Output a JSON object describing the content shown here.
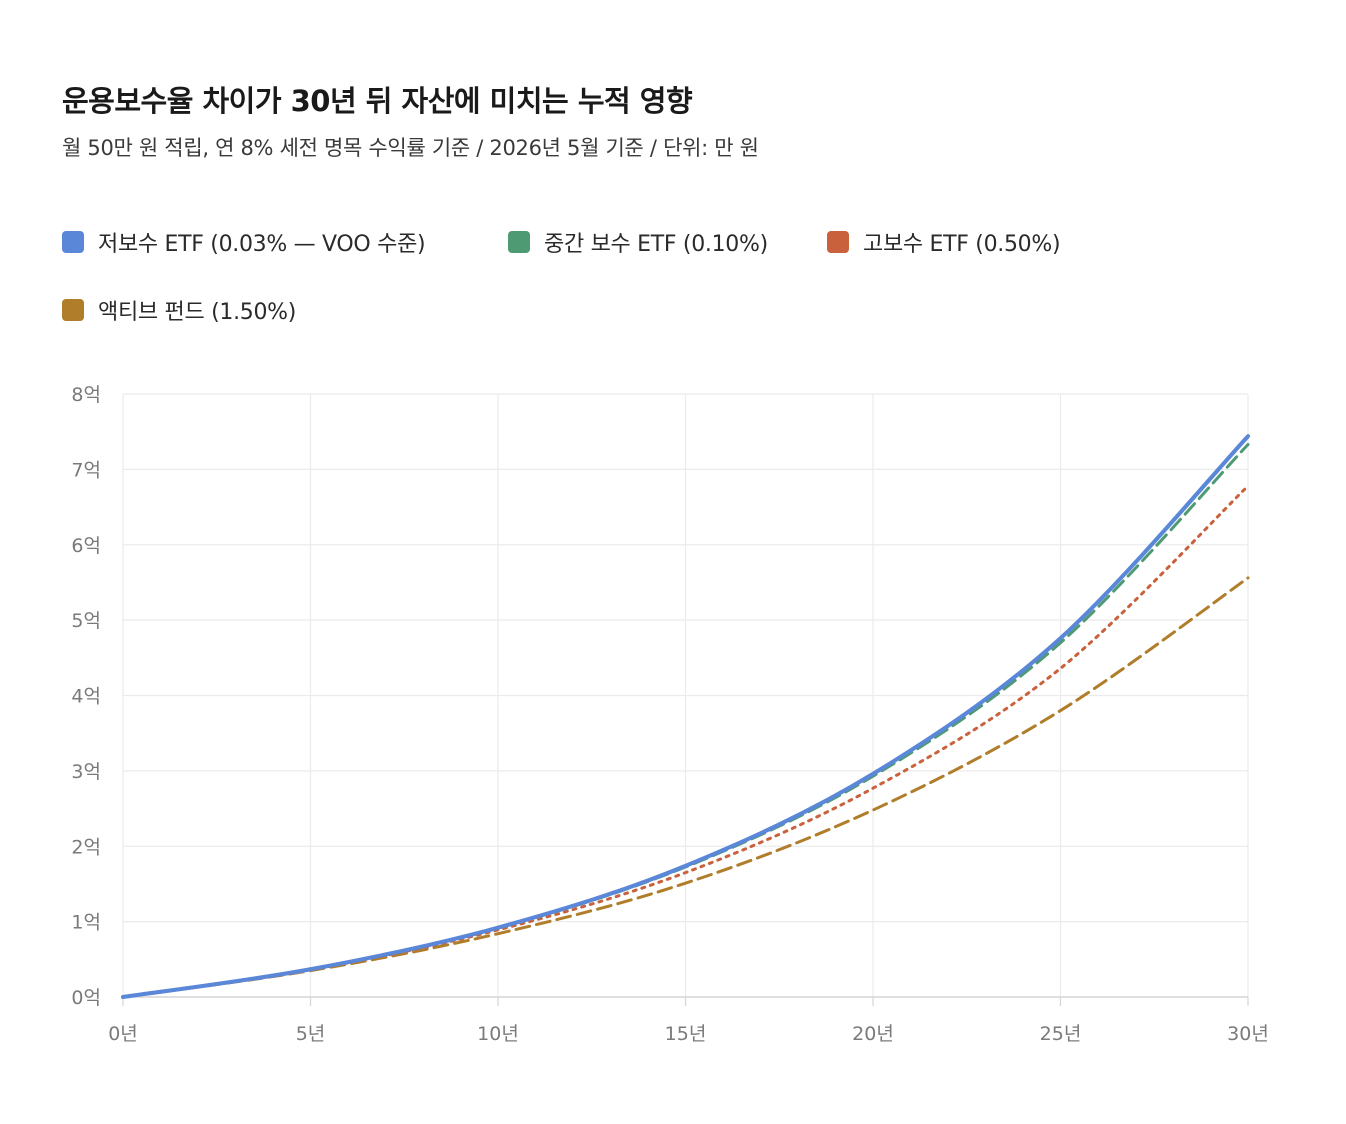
{
  "title": "운용보수율 차이가 30년 뒤 자산에 미치는 누적 영향",
  "subtitle": "월 50만 원 적립, 연 8% 세전 명목 수익률 기준 / 2026년 5월 기준 / 단위: 만 원",
  "legend": [
    {
      "label": "저보수 ETF (0.03% — VOO 수준)",
      "color": "#5b87d9"
    },
    {
      "label": "중간 보수 ETF (0.10%)",
      "color": "#4e9a72"
    },
    {
      "label": "고보수 ETF (0.50%)",
      "color": "#c8613c"
    },
    {
      "label": "액티브 펀드 (1.50%)",
      "color": "#b07d2a"
    }
  ],
  "chart_data": {
    "type": "line",
    "xlabel": "",
    "ylabel": "",
    "x_ticks": [
      "0년",
      "5년",
      "10년",
      "15년",
      "20년",
      "25년",
      "30년"
    ],
    "y_ticks": [
      "0억",
      "1억",
      "2억",
      "3억",
      "4억",
      "5억",
      "6억",
      "7억",
      "8억"
    ],
    "xlim": [
      0,
      30
    ],
    "ylim": [
      0,
      80000
    ],
    "grid": true,
    "legend_position": "top-left",
    "x": [
      0,
      5,
      10,
      15,
      20,
      25,
      30
    ],
    "series": [
      {
        "name": "저보수 ETF (0.03% — VOO 수준)",
        "color": "#5b87d9",
        "style": "solid",
        "values": [
          0,
          3680,
          9200,
          17400,
          29600,
          47600,
          74400
        ]
      },
      {
        "name": "중간 보수 ETF (0.10%)",
        "color": "#4e9a72",
        "style": "dashed",
        "values": [
          0,
          3670,
          9150,
          17250,
          29300,
          47000,
          73300
        ]
      },
      {
        "name": "고보수 ETF (0.50%)",
        "color": "#c8613c",
        "style": "dotted",
        "values": [
          0,
          3620,
          8900,
          16500,
          27700,
          43600,
          67800
        ]
      },
      {
        "name": "액티브 펀드 (1.50%)",
        "color": "#b07d2a",
        "style": "dashed",
        "values": [
          0,
          3500,
          8400,
          15100,
          24800,
          38000,
          55600
        ]
      }
    ]
  }
}
